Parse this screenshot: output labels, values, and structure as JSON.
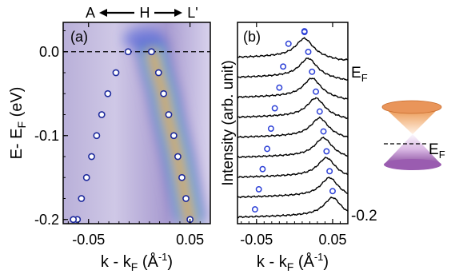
{
  "top_annotation": {
    "left": "A",
    "mid": "H",
    "right": "L'"
  },
  "cone_label": "E",
  "cone_label_sub": "F",
  "chart_data": [
    {
      "type": "heatmap",
      "panel_label": "(a)",
      "xlabel": "k - k",
      "xlabel_sub": "F",
      "xlabel_unit": " (Å",
      "xlabel_unit_sup": "-1",
      "xlabel_close": ")",
      "ylabel": "E- E",
      "ylabel_sub": "F",
      "ylabel_unit": " (eV)",
      "xlim": [
        -0.075,
        0.07
      ],
      "ylim": [
        -0.205,
        0.035
      ],
      "xticks": [
        -0.05,
        0.05
      ],
      "xtick_labels": [
        "-0.05",
        "0.05"
      ],
      "yticks": [
        0.0,
        -0.1,
        -0.2
      ],
      "ytick_labels": [
        "0.0",
        "-0.1",
        "-0.2"
      ],
      "fermi_level": 0.0,
      "colormap": [
        "#eeeef8",
        "#c9c0e2",
        "#8f83c2",
        "#4b60d8",
        "#2ab4f0",
        "#3fe0a8",
        "#f0e62a",
        "#ff8c1a",
        "#d92b1a"
      ],
      "band_peaks": [
        {
          "k": 0.013,
          "e": 0.0
        },
        {
          "k": 0.018,
          "e": -0.025
        },
        {
          "k": 0.024,
          "e": -0.05
        },
        {
          "k": 0.028,
          "e": -0.075
        },
        {
          "k": 0.033,
          "e": -0.1
        },
        {
          "k": 0.038,
          "e": -0.125
        },
        {
          "k": 0.042,
          "e": -0.15
        },
        {
          "k": 0.046,
          "e": -0.175
        },
        {
          "k": 0.05,
          "e": -0.2
        }
      ],
      "series": [
        {
          "marker": "white-dot",
          "k": [
            -0.011,
            -0.023,
            -0.031,
            -0.037,
            -0.042,
            -0.047,
            -0.052,
            -0.057,
            -0.061,
            -0.065
          ],
          "e": [
            0.0,
            -0.025,
            -0.05,
            -0.075,
            -0.1,
            -0.125,
            -0.15,
            -0.175,
            -0.2,
            -0.2
          ]
        },
        {
          "marker": "white-dot",
          "k": [
            0.012,
            0.019,
            0.024,
            0.029,
            0.034,
            0.038,
            0.042,
            0.046,
            0.05
          ],
          "e": [
            0.0,
            -0.025,
            -0.05,
            -0.075,
            -0.1,
            -0.125,
            -0.15,
            -0.175,
            -0.2
          ]
        }
      ]
    },
    {
      "type": "line",
      "panel_label": "(b)",
      "xlabel": "k - k",
      "xlabel_sub": "F",
      "xlabel_unit": " (Å",
      "xlabel_unit_sup": "-1",
      "xlabel_close": ")",
      "ylabel": "Intensity (arb. unit)",
      "xlim": [
        -0.075,
        0.07
      ],
      "xticks": [
        -0.05,
        0.05
      ],
      "xtick_labels": [
        "-0.05",
        "0.05"
      ],
      "right_labels": [
        {
          "text": "E",
          "sub": "F",
          "curve_index": 0
        },
        {
          "text": "-0.2",
          "sub": "",
          "curve_index": 8
        }
      ],
      "curves": [
        {
          "peak_k": 0.013,
          "circle_k": [
            0.013,
            -0.008
          ]
        },
        {
          "peak_k": 0.018,
          "circle_k": [
            -0.015
          ]
        },
        {
          "peak_k": 0.023,
          "circle_k": [
            -0.02
          ]
        },
        {
          "peak_k": 0.028,
          "circle_k": [
            -0.026
          ]
        },
        {
          "peak_k": 0.033,
          "circle_k": [
            -0.031
          ]
        },
        {
          "peak_k": 0.038,
          "circle_k": [
            -0.036
          ]
        },
        {
          "peak_k": 0.042,
          "circle_k": [
            -0.042
          ]
        },
        {
          "peak_k": 0.046,
          "circle_k": [
            -0.047
          ]
        },
        {
          "peak_k": 0.05,
          "circle_k": [
            -0.052
          ]
        }
      ]
    }
  ]
}
